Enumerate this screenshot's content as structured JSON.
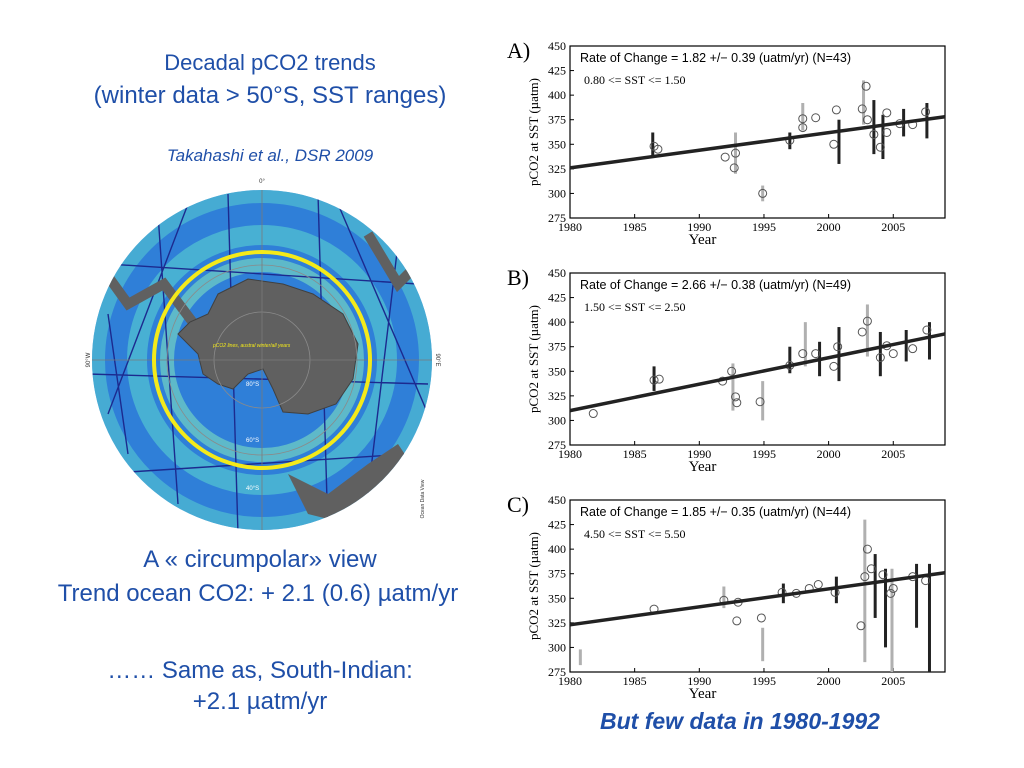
{
  "slide": {
    "title_line1": "Decadal pCO2 trends",
    "title_line2": "(winter data > 50°S, SST ranges)",
    "citation": "Takahashi et al., DSR 2009",
    "caption_line1": "A « circumpolar» view",
    "caption_line2": "Trend ocean CO2: + 2.1 (0.6) µatm/yr",
    "caption_line3": "…… Same as,  South-Indian:",
    "caption_line4": "+2.1 µatm/yr",
    "footnote": "But few data in 1980-1992"
  },
  "map": {
    "colors": {
      "ocean_deep": "#2f7fd8",
      "ocean_shallow": "#5ad0d0",
      "land": "#606060",
      "track": "#1c2a8f",
      "circle": "#f4ea1a"
    },
    "labels": {
      "top": "0°",
      "left": "90°W",
      "right": "90°E",
      "lat80": "80°S",
      "lat60": "60°S",
      "lat40": "40°S",
      "center_note": "pCO2 lines, austral winter/all years",
      "credit": "Ocean Data View"
    }
  },
  "chart_data": [
    {
      "type": "scatter",
      "panel_label": "A)",
      "rate_text": "Rate of Change =  1.82 +/−  0.39 (uatm/yr) (N=43)",
      "sst_text": "0.80 <= SST <=  1.50",
      "xlabel": "Year",
      "ylabel": "pCO2 at SST (µatm)",
      "xlim": [
        1980,
        2009
      ],
      "ylim": [
        275,
        450
      ],
      "xticks": [
        1980,
        1985,
        1990,
        1995,
        2000,
        2005
      ],
      "yticks": [
        275,
        300,
        325,
        350,
        375,
        400,
        425,
        450
      ],
      "trend": {
        "x": [
          1980,
          2009
        ],
        "y": [
          326,
          378
        ]
      },
      "points": [
        {
          "x": 1986.5,
          "y": 348
        },
        {
          "x": 1986.8,
          "y": 345
        },
        {
          "x": 1992.0,
          "y": 337
        },
        {
          "x": 1992.8,
          "y": 341
        },
        {
          "x": 1992.7,
          "y": 326
        },
        {
          "x": 1994.9,
          "y": 300
        },
        {
          "x": 1997.0,
          "y": 354
        },
        {
          "x": 1998.0,
          "y": 376
        },
        {
          "x": 1998.0,
          "y": 367
        },
        {
          "x": 1999.0,
          "y": 377
        },
        {
          "x": 2000.4,
          "y": 350
        },
        {
          "x": 2000.6,
          "y": 385
        },
        {
          "x": 2002.6,
          "y": 386
        },
        {
          "x": 2002.9,
          "y": 409
        },
        {
          "x": 2003.0,
          "y": 375
        },
        {
          "x": 2003.5,
          "y": 360
        },
        {
          "x": 2004.0,
          "y": 347
        },
        {
          "x": 2004.5,
          "y": 382
        },
        {
          "x": 2004.5,
          "y": 362
        },
        {
          "x": 2005.5,
          "y": 371
        },
        {
          "x": 2006.5,
          "y": 370
        },
        {
          "x": 2007.5,
          "y": 383
        }
      ],
      "bars": [
        {
          "x": 1986.4,
          "low": 338,
          "high": 362,
          "tone": "dark"
        },
        {
          "x": 1992.8,
          "low": 320,
          "high": 362,
          "tone": "light"
        },
        {
          "x": 1994.9,
          "low": 292,
          "high": 308,
          "tone": "light"
        },
        {
          "x": 1997.0,
          "low": 345,
          "high": 362,
          "tone": "dark"
        },
        {
          "x": 1998.0,
          "low": 364,
          "high": 392,
          "tone": "light"
        },
        {
          "x": 2000.8,
          "low": 330,
          "high": 375,
          "tone": "dark"
        },
        {
          "x": 2002.7,
          "low": 370,
          "high": 415,
          "tone": "light"
        },
        {
          "x": 2003.5,
          "low": 340,
          "high": 395,
          "tone": "dark"
        },
        {
          "x": 2004.2,
          "low": 335,
          "high": 380,
          "tone": "dark"
        },
        {
          "x": 2005.8,
          "low": 358,
          "high": 386,
          "tone": "dark"
        },
        {
          "x": 2007.6,
          "low": 356,
          "high": 392,
          "tone": "dark"
        }
      ]
    },
    {
      "type": "scatter",
      "panel_label": "B)",
      "rate_text": "Rate of Change =  2.66 +/−  0.38 (uatm/yr) (N=49)",
      "sst_text": "1.50 <= SST <=  2.50",
      "xlabel": "Year",
      "ylabel": "pCO2 at SST (µatm)",
      "xlim": [
        1980,
        2009
      ],
      "ylim": [
        275,
        450
      ],
      "xticks": [
        1980,
        1985,
        1990,
        1995,
        2000,
        2005
      ],
      "yticks": [
        275,
        300,
        325,
        350,
        375,
        400,
        425,
        450
      ],
      "trend": {
        "x": [
          1980,
          2009
        ],
        "y": [
          310,
          388
        ]
      },
      "points": [
        {
          "x": 1981.8,
          "y": 307
        },
        {
          "x": 1986.5,
          "y": 341
        },
        {
          "x": 1986.9,
          "y": 342
        },
        {
          "x": 1991.8,
          "y": 340
        },
        {
          "x": 1992.5,
          "y": 350
        },
        {
          "x": 1992.8,
          "y": 324
        },
        {
          "x": 1992.9,
          "y": 318
        },
        {
          "x": 1994.7,
          "y": 319
        },
        {
          "x": 1997.0,
          "y": 356
        },
        {
          "x": 1998.0,
          "y": 368
        },
        {
          "x": 1999.0,
          "y": 368
        },
        {
          "x": 2000.4,
          "y": 355
        },
        {
          "x": 2000.7,
          "y": 375
        },
        {
          "x": 2002.6,
          "y": 390
        },
        {
          "x": 2003.0,
          "y": 401
        },
        {
          "x": 2004.0,
          "y": 364
        },
        {
          "x": 2004.5,
          "y": 376
        },
        {
          "x": 2005.0,
          "y": 368
        },
        {
          "x": 2006.5,
          "y": 373
        },
        {
          "x": 2007.6,
          "y": 392
        }
      ],
      "bars": [
        {
          "x": 1986.5,
          "low": 330,
          "high": 355,
          "tone": "dark"
        },
        {
          "x": 1992.6,
          "low": 310,
          "high": 358,
          "tone": "light"
        },
        {
          "x": 1994.9,
          "low": 300,
          "high": 340,
          "tone": "light"
        },
        {
          "x": 1997.0,
          "low": 348,
          "high": 375,
          "tone": "dark"
        },
        {
          "x": 1998.2,
          "low": 355,
          "high": 400,
          "tone": "light"
        },
        {
          "x": 1999.3,
          "low": 345,
          "high": 380,
          "tone": "dark"
        },
        {
          "x": 2000.8,
          "low": 340,
          "high": 395,
          "tone": "dark"
        },
        {
          "x": 2003.0,
          "low": 365,
          "high": 418,
          "tone": "light"
        },
        {
          "x": 2004.0,
          "low": 345,
          "high": 390,
          "tone": "dark"
        },
        {
          "x": 2006.0,
          "low": 360,
          "high": 392,
          "tone": "dark"
        },
        {
          "x": 2007.8,
          "low": 362,
          "high": 400,
          "tone": "dark"
        }
      ]
    },
    {
      "type": "scatter",
      "panel_label": "C)",
      "rate_text": "Rate of Change =  1.85 +/−  0.35 (uatm/yr) (N=44)",
      "sst_text": "4.50 <= SST <=  5.50",
      "xlabel": "Year",
      "ylabel": "pCO2 at SST (µatm)",
      "xlim": [
        1980,
        2009
      ],
      "ylim": [
        275,
        450
      ],
      "xticks": [
        1980,
        1985,
        1990,
        1995,
        2000,
        2005
      ],
      "yticks": [
        275,
        300,
        325,
        350,
        375,
        400,
        425,
        450
      ],
      "trend": {
        "x": [
          1980,
          2009
        ],
        "y": [
          323,
          376
        ]
      },
      "points": [
        {
          "x": 1986.5,
          "y": 339
        },
        {
          "x": 1991.9,
          "y": 348
        },
        {
          "x": 1992.9,
          "y": 327
        },
        {
          "x": 1993.0,
          "y": 346
        },
        {
          "x": 1994.8,
          "y": 330
        },
        {
          "x": 1996.4,
          "y": 356
        },
        {
          "x": 1997.5,
          "y": 355
        },
        {
          "x": 1998.5,
          "y": 360
        },
        {
          "x": 1999.2,
          "y": 364
        },
        {
          "x": 2000.5,
          "y": 356
        },
        {
          "x": 2002.5,
          "y": 322
        },
        {
          "x": 2002.8,
          "y": 372
        },
        {
          "x": 2003.0,
          "y": 400
        },
        {
          "x": 2003.3,
          "y": 380
        },
        {
          "x": 2004.2,
          "y": 374
        },
        {
          "x": 2004.8,
          "y": 355
        },
        {
          "x": 2005.0,
          "y": 360
        },
        {
          "x": 2006.5,
          "y": 372
        },
        {
          "x": 2007.5,
          "y": 368
        }
      ],
      "bars": [
        {
          "x": 1980.8,
          "low": 282,
          "high": 298,
          "tone": "light"
        },
        {
          "x": 1991.9,
          "low": 340,
          "high": 362,
          "tone": "light"
        },
        {
          "x": 1994.9,
          "low": 286,
          "high": 320,
          "tone": "light"
        },
        {
          "x": 1996.5,
          "low": 345,
          "high": 365,
          "tone": "dark"
        },
        {
          "x": 2000.6,
          "low": 345,
          "high": 372,
          "tone": "dark"
        },
        {
          "x": 2002.8,
          "low": 285,
          "high": 430,
          "tone": "light"
        },
        {
          "x": 2003.6,
          "low": 330,
          "high": 395,
          "tone": "dark"
        },
        {
          "x": 2004.4,
          "low": 300,
          "high": 380,
          "tone": "dark"
        },
        {
          "x": 2004.9,
          "low": 275,
          "high": 380,
          "tone": "light"
        },
        {
          "x": 2006.8,
          "low": 320,
          "high": 385,
          "tone": "dark"
        },
        {
          "x": 2007.8,
          "low": 275,
          "high": 385,
          "tone": "dark"
        }
      ]
    }
  ]
}
